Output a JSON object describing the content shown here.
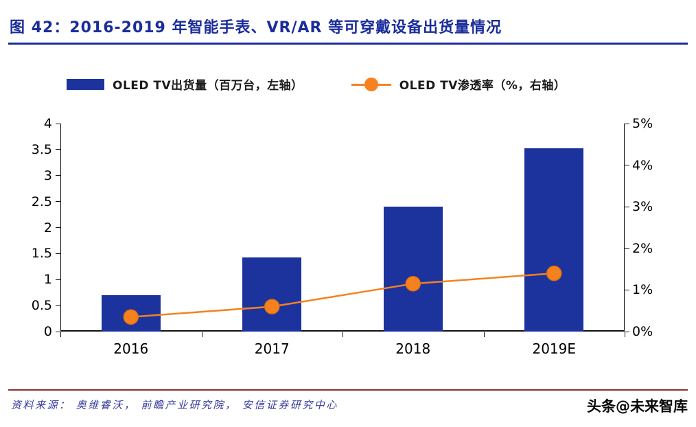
{
  "header": {
    "title": "图 42：2016-2019 年智能手表、VR/AR 等可穿戴设备出货量情况"
  },
  "legend": {
    "bar_label": "OLED TV出货量（百万台，左轴）",
    "line_label": "OLED TV渗透率（%，右轴）"
  },
  "colors": {
    "title_blue": "#1b2d9b",
    "bar_blue": "#1c339e",
    "line_orange": "#f5821f",
    "footer_maroon": "#8a2f2f"
  },
  "chart_data": {
    "type": "bar",
    "subtype": "combo-bar-line",
    "title": "图 42：2016-2019 年智能手表、VR/AR 等可穿戴设备出货量情况",
    "categories": [
      "2016",
      "2017",
      "2018",
      "2019E"
    ],
    "series": [
      {
        "name": "OLED TV出货量（百万台，左轴）",
        "type": "bar",
        "axis": "left",
        "color": "#1c339e",
        "values": [
          0.7,
          1.42,
          2.4,
          3.52
        ]
      },
      {
        "name": "OLED TV渗透率（%，右轴）",
        "type": "line",
        "axis": "right",
        "color": "#f5821f",
        "values": [
          0.35,
          0.6,
          1.15,
          1.4
        ]
      }
    ],
    "left_axis": {
      "min": 0,
      "max": 4,
      "tick_values": [
        0,
        0.5,
        1,
        1.5,
        2,
        2.5,
        3,
        3.5,
        4
      ],
      "tick_labels": [
        "0",
        "0.5",
        "1",
        "1.5",
        "2",
        "2.5",
        "3",
        "3.5",
        "4"
      ]
    },
    "right_axis": {
      "min": 0,
      "max": 5,
      "tick_values": [
        0,
        1,
        2,
        3,
        4,
        5
      ],
      "tick_labels": [
        "0%",
        "1%",
        "2%",
        "3%",
        "4%",
        "5%"
      ]
    },
    "legend_position": "top",
    "grid": false
  },
  "footer": {
    "source": "资料来源： 奥维睿沃， 前瞻产业研究院， 安信证券研究中心",
    "watermark": "头条@未来智库"
  }
}
